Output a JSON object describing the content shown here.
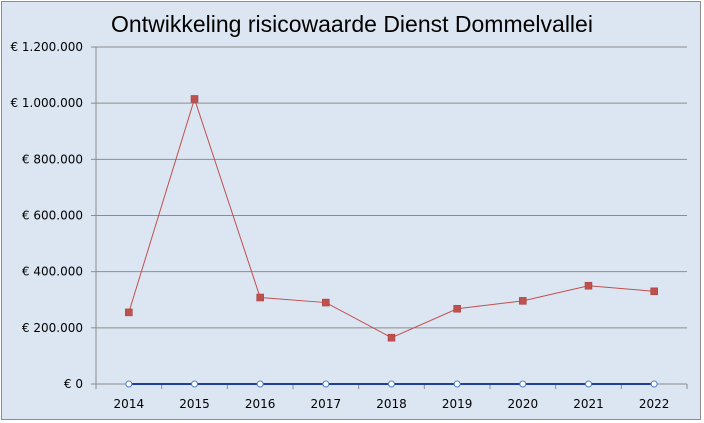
{
  "chart_data": {
    "type": "line",
    "title": "Ontwikkeling risicowaarde Dienst Dommelvallei",
    "xlabel": "",
    "ylabel": "",
    "categories": [
      "2014",
      "2015",
      "2016",
      "2017",
      "2018",
      "2019",
      "2020",
      "2021",
      "2022"
    ],
    "ylim": [
      0,
      1200000
    ],
    "y_ticks": [
      0,
      200000,
      400000,
      600000,
      800000,
      1000000,
      1200000
    ],
    "y_tick_labels": [
      "€ 0",
      "€ 200.000",
      "€ 400.000",
      "€ 600.000",
      "€ 800.000",
      "€ 1.000.000",
      "€ 1.200.000"
    ],
    "grid": true,
    "legend": "none",
    "series": [
      {
        "color": "#c0504d",
        "marker": "square",
        "values": [
          255000,
          1015000,
          308000,
          290000,
          165000,
          268000,
          296000,
          350000,
          330000
        ]
      },
      {
        "color": "#1f3f99",
        "marker": "circle",
        "values": [
          0,
          0,
          0,
          0,
          0,
          0,
          0,
          0,
          0
        ]
      }
    ]
  }
}
